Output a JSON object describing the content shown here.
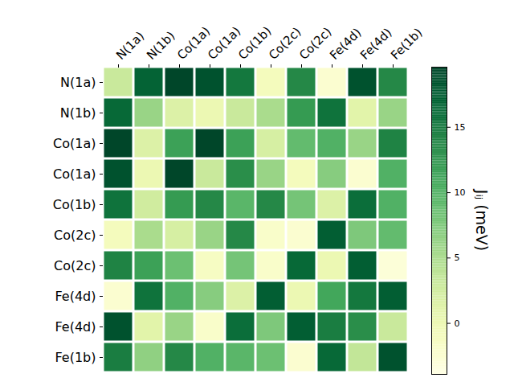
{
  "chart_data": {
    "type": "heatmap",
    "x_labels": [
      "N(1a)",
      "N(1b)",
      "Co(1a)",
      "Co(1a)",
      "Co(1b)",
      "Co(2c)",
      "Co(2c)",
      "Fe(4d)",
      "Fe(4d)",
      "Fe(1b)"
    ],
    "y_labels": [
      "N(1a)",
      "N(1b)",
      "Co(1a)",
      "Co(1a)",
      "Co(1b)",
      "Co(2c)",
      "Co(2c)",
      "Fe(4d)",
      "Fe(4d)",
      "Fe(1b)"
    ],
    "values": [
      [
        3,
        17,
        19.5,
        18.5,
        15,
        -1,
        13.5,
        -2.5,
        18.5,
        13.5
      ],
      [
        16.5,
        6,
        1.5,
        0,
        3,
        5,
        12,
        15.5,
        1,
        6
      ],
      [
        19.5,
        1.5,
        11.5,
        19.5,
        11.5,
        2,
        9,
        10,
        6,
        14
      ],
      [
        18.5,
        0,
        19.5,
        3,
        13,
        6,
        -1,
        7,
        -2.5,
        10
      ],
      [
        15.5,
        2.5,
        12,
        13.5,
        9.5,
        13.5,
        8,
        1.5,
        16,
        10
      ],
      [
        -1,
        5,
        2,
        6,
        13.5,
        -2,
        -2.5,
        17.5,
        7.5,
        9
      ],
      [
        14,
        11.5,
        8.5,
        -1.5,
        8,
        -2,
        16.5,
        0,
        17.5,
        -3
      ],
      [
        -2.5,
        15.5,
        10,
        7,
        1.5,
        17.5,
        0,
        11,
        15,
        17.5
      ],
      [
        18.5,
        1,
        6,
        -2,
        16,
        7.5,
        17.5,
        14.5,
        13,
        3
      ],
      [
        14.5,
        6.5,
        13.5,
        10,
        9.5,
        8.5,
        -2.5,
        16.5,
        3.5,
        18.5
      ]
    ],
    "color": "YlGn",
    "colorbar": {
      "label": "Jᵢⱼ (meV)",
      "range": [
        -3.9,
        19.6
      ],
      "ticks": [
        0,
        5,
        10,
        15
      ]
    }
  }
}
